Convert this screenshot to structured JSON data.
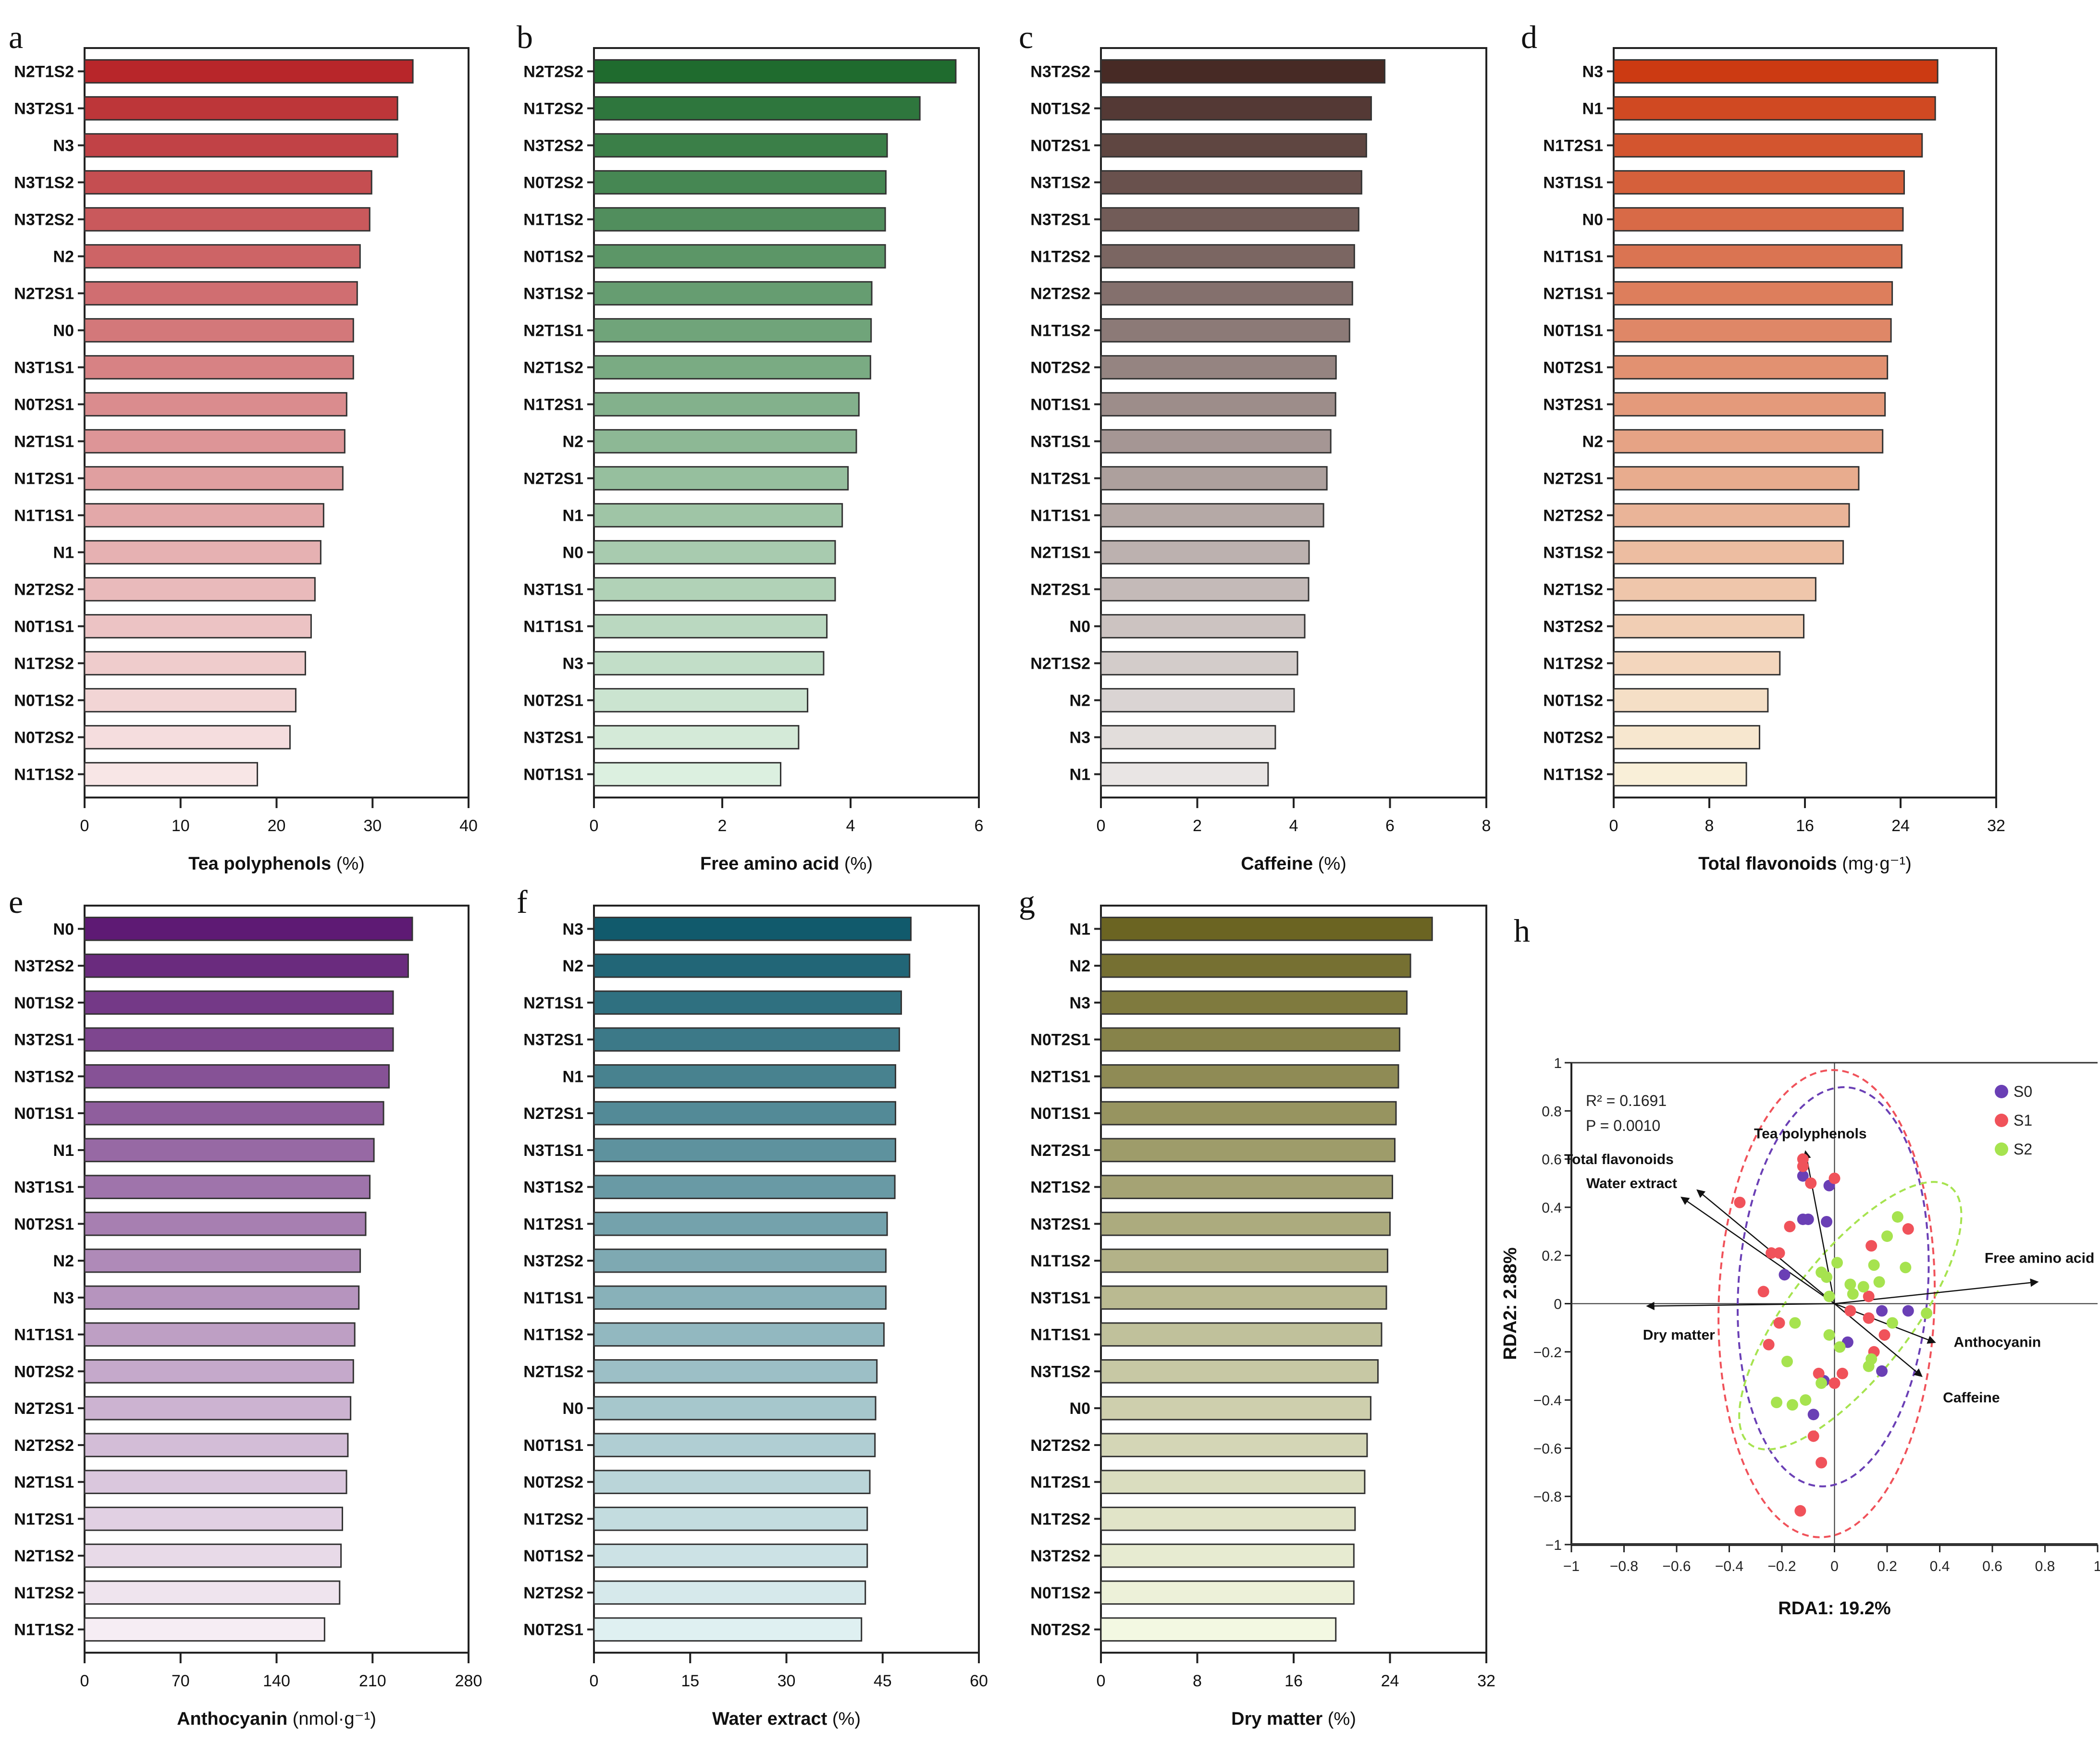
{
  "chart_data": [
    {
      "panel": "a",
      "type": "bar",
      "orientation": "horizontal",
      "xlabel": "Tea polyphenols",
      "xlabel_unit": "(%)",
      "xlim": [
        0,
        40
      ],
      "xticks": [
        0,
        10,
        20,
        30,
        40
      ],
      "color_dark": "#B8262A",
      "color_light": "#F8E6E6",
      "categories": [
        "N2T1S2",
        "N3T2S1",
        "N3",
        "N3T1S2",
        "N3T2S2",
        "N2",
        "N2T2S1",
        "N0",
        "N3T1S1",
        "N0T2S1",
        "N2T1S1",
        "N1T2S1",
        "N1T1S1",
        "N1",
        "N2T2S2",
        "N0T1S1",
        "N1T2S2",
        "N0T1S2",
        "N0T2S2",
        "N1T1S2"
      ],
      "values": [
        34.2,
        32.6,
        32.6,
        29.9,
        29.7,
        28.7,
        28.4,
        28.0,
        28.0,
        27.3,
        27.1,
        26.9,
        24.9,
        24.6,
        24.0,
        23.6,
        23.0,
        22.0,
        21.4,
        18.0
      ]
    },
    {
      "panel": "b",
      "type": "bar",
      "orientation": "horizontal",
      "xlabel": "Free amino acid",
      "xlabel_unit": "(%)",
      "xlim": [
        0,
        6
      ],
      "xticks": [
        0,
        2,
        4,
        6
      ],
      "color_dark": "#1F6B2E",
      "color_light": "#DCF0E0",
      "categories": [
        "N2T2S2",
        "N1T2S2",
        "N3T2S2",
        "N0T2S2",
        "N1T1S2",
        "N0T1S2",
        "N3T1S2",
        "N2T1S1",
        "N2T1S2",
        "N1T2S1",
        "N2",
        "N2T2S1",
        "N1",
        "N0",
        "N3T1S1",
        "N1T1S1",
        "N3",
        "N0T2S1",
        "N3T2S1",
        "N0T1S1"
      ],
      "values": [
        5.64,
        5.08,
        4.57,
        4.55,
        4.54,
        4.54,
        4.33,
        4.32,
        4.31,
        4.13,
        4.09,
        3.96,
        3.87,
        3.76,
        3.76,
        3.63,
        3.58,
        3.33,
        3.19,
        2.91
      ]
    },
    {
      "panel": "c",
      "type": "bar",
      "orientation": "horizontal",
      "xlabel": "Caffeine",
      "xlabel_unit": "(%)",
      "xlim": [
        0,
        8
      ],
      "xticks": [
        0,
        2,
        4,
        6,
        8
      ],
      "color_dark": "#472A25",
      "color_light": "#E9E5E4",
      "categories": [
        "N3T2S2",
        "N0T1S2",
        "N0T2S1",
        "N3T1S2",
        "N3T2S1",
        "N1T2S2",
        "N2T2S2",
        "N1T1S2",
        "N0T2S2",
        "N0T1S1",
        "N3T1S1",
        "N1T2S1",
        "N1T1S1",
        "N2T1S1",
        "N2T2S1",
        "N0",
        "N2T1S2",
        "N2",
        "N3",
        "N1"
      ],
      "values": [
        5.89,
        5.61,
        5.51,
        5.41,
        5.35,
        5.26,
        5.22,
        5.16,
        4.88,
        4.87,
        4.77,
        4.69,
        4.62,
        4.32,
        4.31,
        4.23,
        4.08,
        4.01,
        3.62,
        3.47
      ]
    },
    {
      "panel": "d",
      "type": "bar",
      "orientation": "horizontal",
      "xlabel": "Total flavonoids",
      "xlabel_unit": "(mg·g⁻¹)",
      "xlim": [
        0,
        32
      ],
      "xticks": [
        0,
        8,
        16,
        24,
        32
      ],
      "color_dark": "#CC3A12",
      "color_light": "#F9EFD8",
      "categories": [
        "N3",
        "N1",
        "N1T2S1",
        "N3T1S1",
        "N0",
        "N1T1S1",
        "N2T1S1",
        "N0T1S1",
        "N0T2S1",
        "N3T2S1",
        "N2",
        "N2T2S1",
        "N2T2S2",
        "N3T1S2",
        "N2T1S2",
        "N3T2S2",
        "N1T2S2",
        "N0T1S2",
        "N0T2S2",
        "N1T1S2"
      ],
      "values": [
        27.1,
        26.9,
        25.8,
        24.3,
        24.2,
        24.1,
        23.3,
        23.2,
        22.9,
        22.7,
        22.5,
        20.5,
        19.7,
        19.2,
        16.9,
        15.9,
        13.9,
        12.9,
        12.2,
        11.1
      ]
    },
    {
      "panel": "e",
      "type": "bar",
      "orientation": "horizontal",
      "xlabel": "Anthocyanin",
      "xlabel_unit": "(nmol·g⁻¹)",
      "xlim": [
        0,
        280
      ],
      "xticks": [
        0,
        70,
        140,
        210,
        280
      ],
      "color_dark": "#5E1A74",
      "color_light": "#F6EDF4",
      "categories": [
        "N0",
        "N3T2S2",
        "N0T1S2",
        "N3T2S1",
        "N3T1S2",
        "N0T1S1",
        "N1",
        "N3T1S1",
        "N0T2S1",
        "N2",
        "N3",
        "N1T1S1",
        "N0T2S2",
        "N2T2S1",
        "N2T2S2",
        "N2T1S1",
        "N1T2S1",
        "N2T1S2",
        "N1T2S2",
        "N1T1S2"
      ],
      "values": [
        239,
        236,
        225,
        225,
        222,
        218,
        211,
        208,
        205,
        201,
        200,
        197,
        196,
        194,
        192,
        191,
        188,
        187,
        186,
        175
      ]
    },
    {
      "panel": "f",
      "type": "bar",
      "orientation": "horizontal",
      "xlabel": "Water extract",
      "xlabel_unit": "(%)",
      "xlim": [
        0,
        60
      ],
      "xticks": [
        0,
        15,
        30,
        45,
        60
      ],
      "color_dark": "#115A6C",
      "color_light": "#DFF0F1",
      "categories": [
        "N3",
        "N2",
        "N2T1S1",
        "N3T2S1",
        "N1",
        "N2T2S1",
        "N3T1S1",
        "N3T1S2",
        "N1T2S1",
        "N3T2S2",
        "N1T1S1",
        "N1T1S2",
        "N2T1S2",
        "N0",
        "N0T1S1",
        "N0T2S2",
        "N1T2S2",
        "N0T1S2",
        "N2T2S2",
        "N0T2S1"
      ],
      "values": [
        49.4,
        49.2,
        47.9,
        47.6,
        47.0,
        47.0,
        47.0,
        46.9,
        45.7,
        45.5,
        45.5,
        45.2,
        44.1,
        43.9,
        43.8,
        43.0,
        42.6,
        42.6,
        42.3,
        41.7
      ]
    },
    {
      "panel": "g",
      "type": "bar",
      "orientation": "horizontal",
      "xlabel": "Dry matter",
      "xlabel_unit": "(%)",
      "xlim": [
        0,
        32
      ],
      "xticks": [
        0,
        8,
        16,
        24,
        32
      ],
      "color_dark": "#6B6422",
      "color_light": "#F3F8E2",
      "categories": [
        "N1",
        "N2",
        "N3",
        "N0T2S1",
        "N2T1S1",
        "N0T1S1",
        "N2T2S1",
        "N2T1S2",
        "N3T2S1",
        "N1T1S2",
        "N3T1S1",
        "N1T1S1",
        "N3T1S2",
        "N0",
        "N2T2S2",
        "N1T2S1",
        "N1T2S2",
        "N3T2S2",
        "N0T1S2",
        "N0T2S2"
      ],
      "values": [
        27.5,
        25.7,
        25.4,
        24.8,
        24.7,
        24.5,
        24.4,
        24.2,
        24.0,
        23.8,
        23.7,
        23.3,
        23.0,
        22.4,
        22.1,
        21.9,
        21.1,
        21.0,
        21.0,
        19.5
      ]
    },
    {
      "panel": "h",
      "type": "scatter",
      "title": "",
      "xlabel": "RDA1: 19.2%",
      "ylabel": "RDA2: 2.88%",
      "xlim": [
        -1,
        1
      ],
      "ylim": [
        -1,
        1
      ],
      "xticks": [
        -1,
        -0.8,
        -0.6,
        -0.4,
        -0.2,
        0,
        0.2,
        0.4,
        0.6,
        0.8,
        1
      ],
      "yticks": [
        -1,
        -0.8,
        -0.6,
        -0.4,
        -0.2,
        0,
        0.2,
        0.4,
        0.6,
        0.8,
        1
      ],
      "annotations": [
        "R² = 0.1691",
        "P = 0.0010"
      ],
      "legend_position": "top-right",
      "series": [
        {
          "name": "S0",
          "color": "#6A3FB5",
          "points": [
            [
              -0.12,
              0.53
            ],
            [
              -0.02,
              0.49
            ],
            [
              -0.12,
              0.35
            ],
            [
              -0.1,
              0.35
            ],
            [
              -0.03,
              0.34
            ],
            [
              -0.19,
              0.12
            ],
            [
              0.18,
              -0.03
            ],
            [
              0.28,
              -0.03
            ],
            [
              0.05,
              -0.16
            ],
            [
              0.18,
              -0.28
            ],
            [
              -0.04,
              -0.32
            ],
            [
              -0.08,
              -0.46
            ]
          ],
          "ellipse": {
            "cx": -0.005,
            "cy": 0.07,
            "rx": 0.36,
            "ry": 0.83,
            "angle_deg": -4
          }
        },
        {
          "name": "S1",
          "color": "#F0525A",
          "points": [
            [
              -0.12,
              0.6
            ],
            [
              -0.12,
              0.57
            ],
            [
              -0.09,
              0.5
            ],
            [
              0.0,
              0.52
            ],
            [
              -0.36,
              0.42
            ],
            [
              -0.17,
              0.32
            ],
            [
              -0.24,
              0.21
            ],
            [
              -0.21,
              0.21
            ],
            [
              0.28,
              0.31
            ],
            [
              0.14,
              0.24
            ],
            [
              -0.27,
              0.05
            ],
            [
              0.13,
              0.03
            ],
            [
              0.06,
              -0.03
            ],
            [
              0.13,
              -0.06
            ],
            [
              0.19,
              -0.13
            ],
            [
              -0.21,
              -0.08
            ],
            [
              -0.25,
              -0.17
            ],
            [
              0.15,
              -0.2
            ],
            [
              -0.06,
              -0.29
            ],
            [
              0.03,
              -0.29
            ],
            [
              0.0,
              -0.33
            ],
            [
              -0.08,
              -0.55
            ],
            [
              -0.05,
              -0.66
            ],
            [
              -0.13,
              -0.86
            ]
          ],
          "ellipse": {
            "cx": -0.03,
            "cy": 0.0,
            "rx": 0.41,
            "ry": 0.97,
            "angle_deg": -2
          }
        },
        {
          "name": "S2",
          "color": "#A6E34F",
          "points": [
            [
              0.24,
              0.36
            ],
            [
              0.2,
              0.28
            ],
            [
              0.01,
              0.17
            ],
            [
              0.15,
              0.16
            ],
            [
              0.27,
              0.15
            ],
            [
              -0.05,
              0.13
            ],
            [
              -0.03,
              0.11
            ],
            [
              0.17,
              0.09
            ],
            [
              0.06,
              0.08
            ],
            [
              0.11,
              0.07
            ],
            [
              0.07,
              0.04
            ],
            [
              -0.02,
              0.03
            ],
            [
              0.35,
              -0.04
            ],
            [
              0.22,
              -0.08
            ],
            [
              -0.15,
              -0.08
            ],
            [
              -0.02,
              -0.13
            ],
            [
              0.02,
              -0.18
            ],
            [
              0.14,
              -0.23
            ],
            [
              0.13,
              -0.26
            ],
            [
              -0.18,
              -0.24
            ],
            [
              -0.05,
              -0.33
            ],
            [
              -0.11,
              -0.4
            ],
            [
              -0.16,
              -0.42
            ],
            [
              -0.22,
              -0.41
            ]
          ],
          "ellipse": {
            "cx": 0.06,
            "cy": -0.05,
            "rx": 0.62,
            "ry": 0.25,
            "angle_deg": 52
          }
        }
      ],
      "vectors": [
        {
          "name": "Tea polyphenols",
          "x": -0.11,
          "y": 0.63
        },
        {
          "name": "Total flavonoids",
          "x": -0.52,
          "y": 0.47
        },
        {
          "name": "Water extract",
          "x": -0.58,
          "y": 0.44
        },
        {
          "name": "Dry matter",
          "x": -0.71,
          "y": -0.01
        },
        {
          "name": "Free amino acid",
          "x": 0.77,
          "y": 0.09
        },
        {
          "name": "Anthocyanin",
          "x": 0.38,
          "y": -0.16
        },
        {
          "name": "Caffeine",
          "x": 0.33,
          "y": -0.3
        }
      ]
    }
  ],
  "panel_letters": [
    "a",
    "b",
    "c",
    "d",
    "e",
    "f",
    "g",
    "h"
  ],
  "rda_text": {
    "r2_label": "R² = 0.1691",
    "p_label": "P = 0.0010",
    "xlabel": "RDA1: 19.2%",
    "ylabel": "RDA2: 2.88%",
    "legend": [
      "S0",
      "S1",
      "S2"
    ]
  }
}
